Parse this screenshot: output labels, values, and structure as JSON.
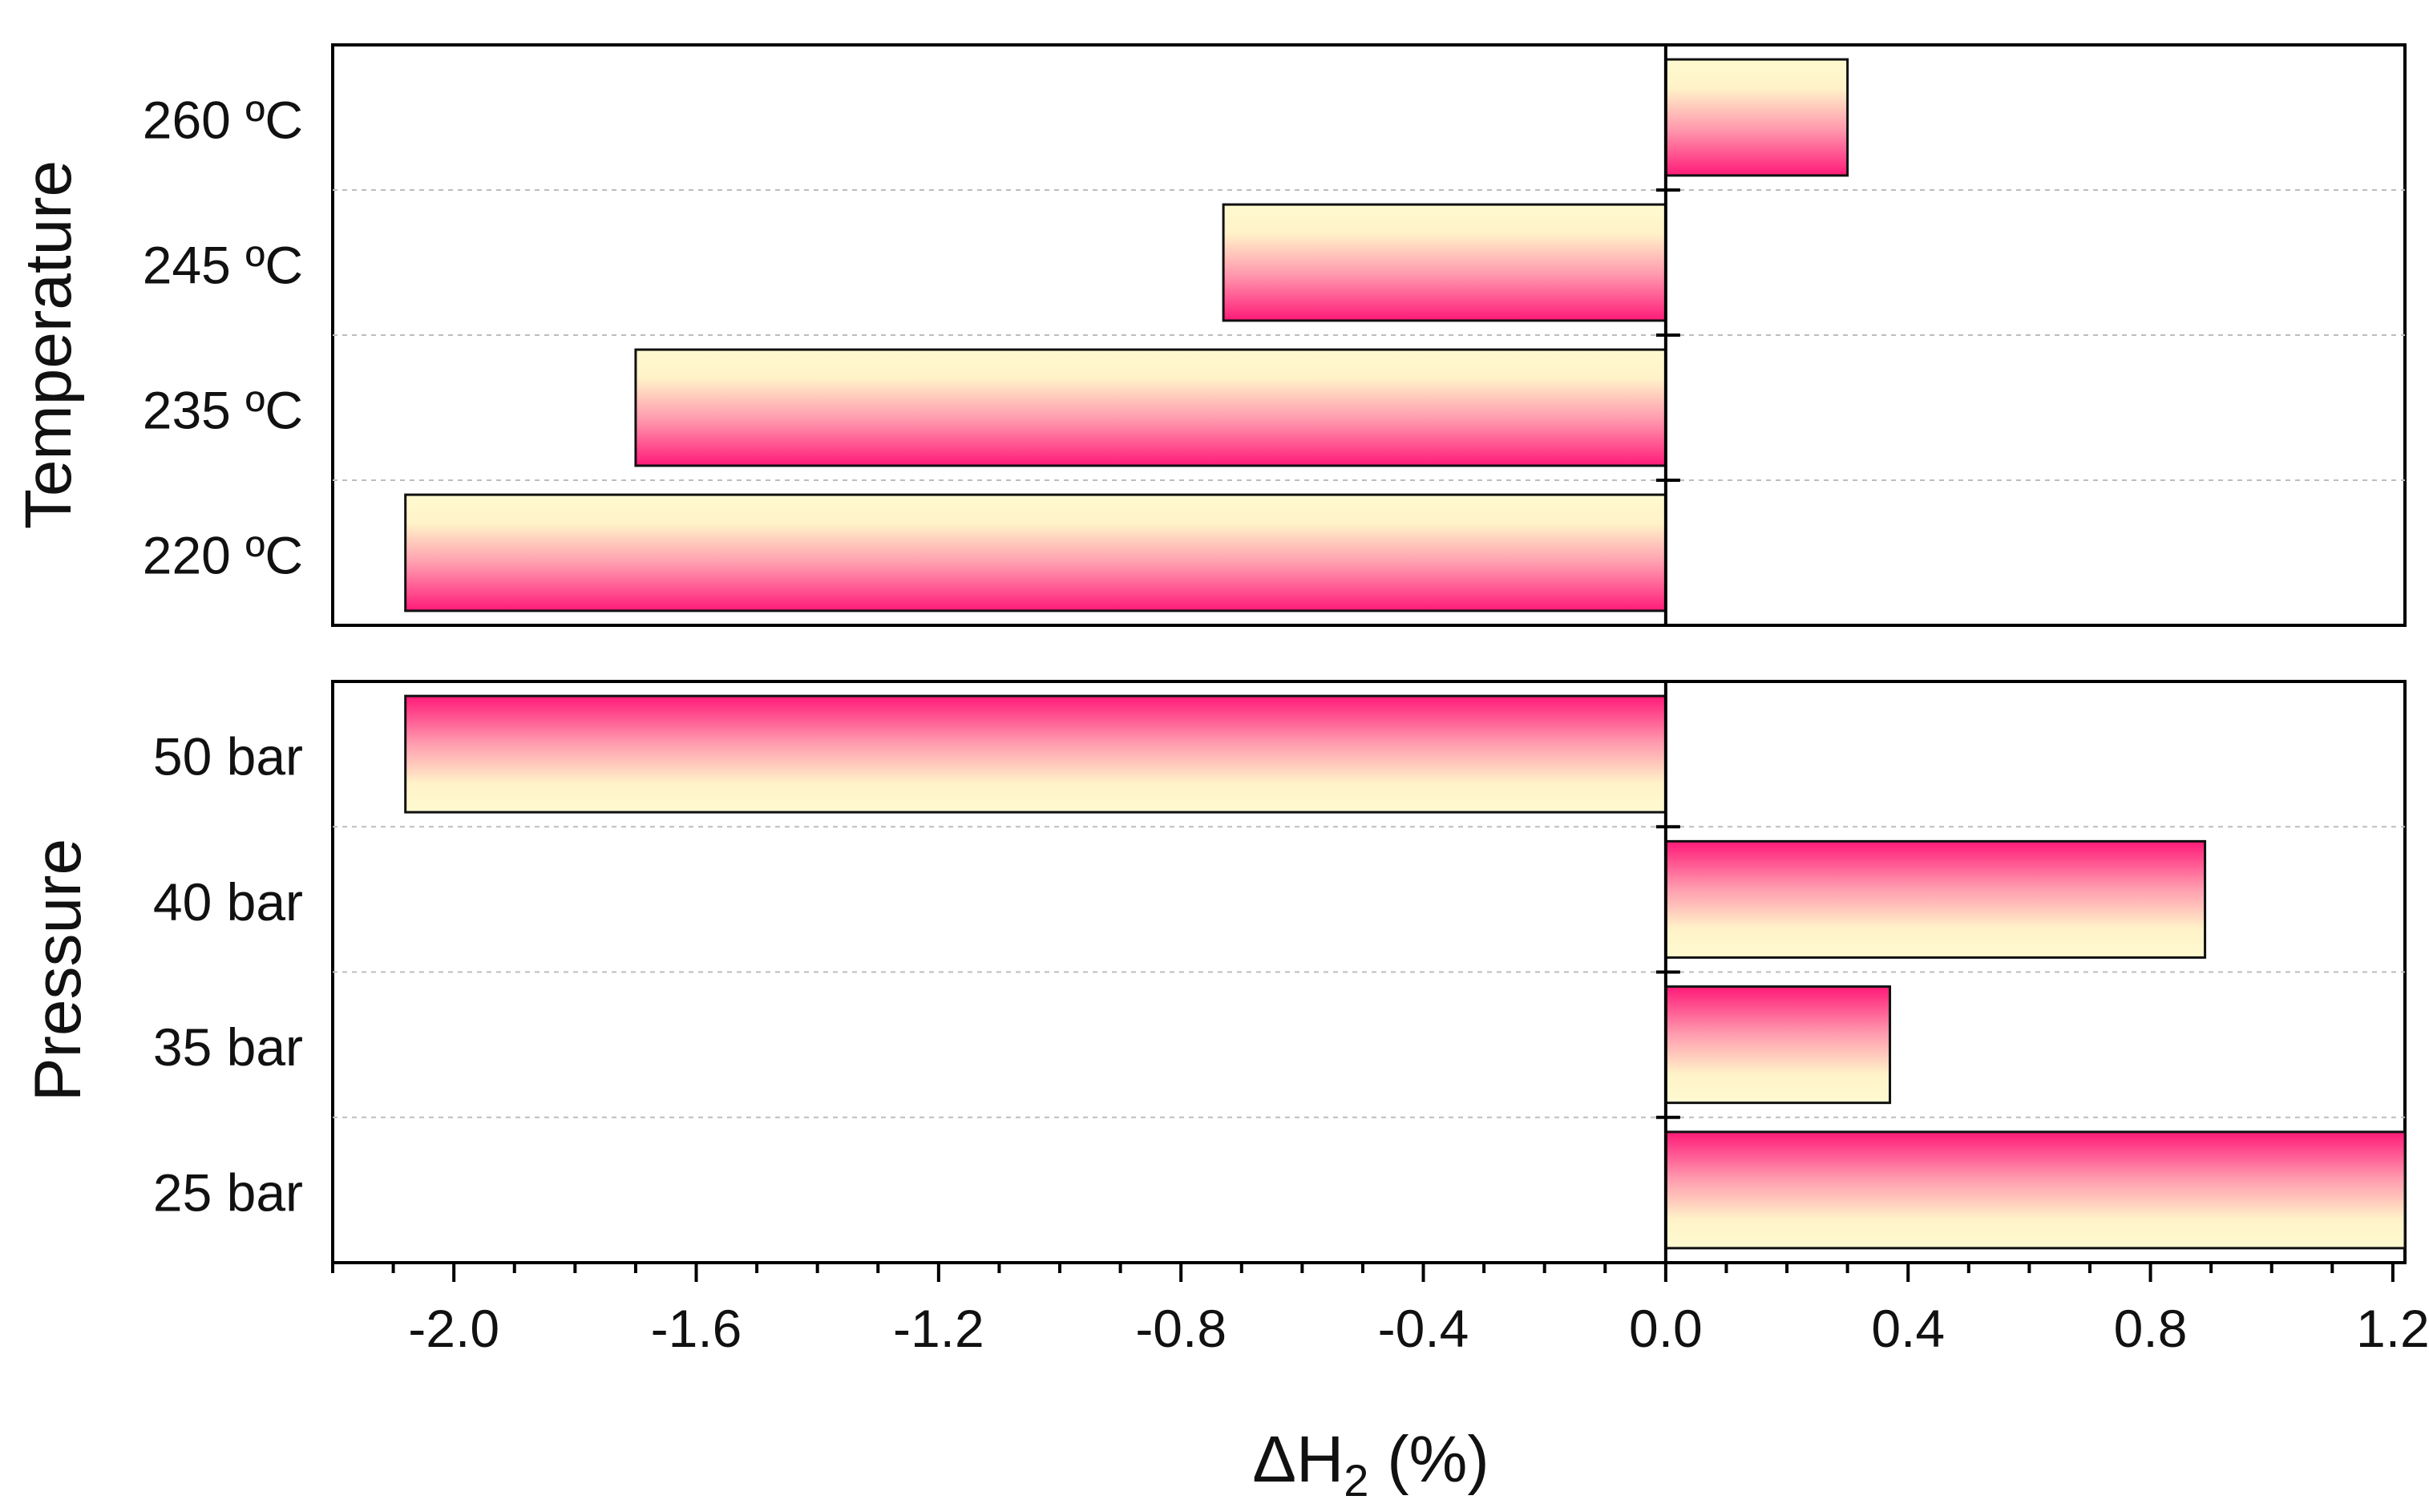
{
  "chart_data": {
    "type": "bar",
    "orientation": "horizontal",
    "xlabel": "ΔH",
    "xlabel_subscript": "2",
    "xlabel_suffix": " (%)",
    "xlim": [
      -2.2,
      1.22
    ],
    "xticks": [
      -2.0,
      -1.6,
      -1.2,
      -0.8,
      -0.4,
      0.0,
      0.4,
      0.8,
      1.2
    ],
    "xtick_labels": [
      "-2.0",
      "-1.6",
      "-1.2",
      "-0.8",
      "-0.4",
      "0.0",
      "0.4",
      "0.8",
      "1.2"
    ],
    "panels": [
      {
        "name": "temperature",
        "ylabel": "Temperature",
        "categories": [
          "220 ºC",
          "235 ºC",
          "245 ºC",
          "260 ºC"
        ],
        "values": [
          -2.08,
          -1.7,
          -0.73,
          0.3
        ],
        "gradient": "yellow-top"
      },
      {
        "name": "pressure",
        "ylabel": "Pressure",
        "categories": [
          "25 bar",
          "35 bar",
          "40 bar",
          "50 bar"
        ],
        "values": [
          1.22,
          0.37,
          0.89,
          -2.08
        ],
        "gradient": "pink-top"
      }
    ]
  },
  "colors": {
    "gradient_light": "#fffad0",
    "gradient_dark": "#ff1a78",
    "frame": "#000000",
    "grid": "#bdbdbd"
  }
}
